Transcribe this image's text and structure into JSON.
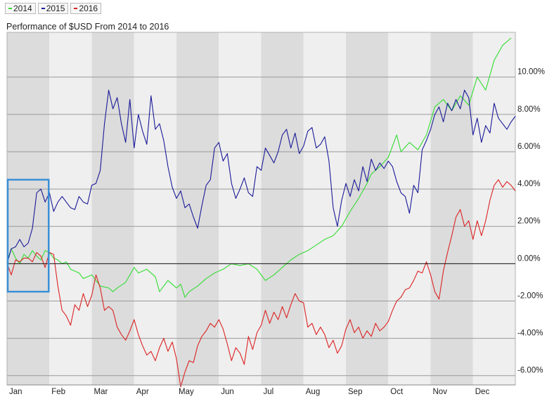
{
  "title": "Performance of $USD From 2014 to 2016",
  "colors": {
    "2014": "#33dd33",
    "2015": "#1a1a99",
    "2016": "#dd2222",
    "band_dark": "#dcdcdc",
    "band_light": "#efefef",
    "highlight": "#3a8fd6"
  },
  "chart_data": {
    "type": "line",
    "title": "Performance of $USD From 2014 to 2016",
    "xlabel": "",
    "ylabel": "",
    "x_categories": [
      "Jan",
      "Feb",
      "Mar",
      "Apr",
      "May",
      "Jun",
      "Jul",
      "Aug",
      "Sep",
      "Oct",
      "Nov",
      "Dec"
    ],
    "x_range": [
      0,
      12
    ],
    "ylim": [
      -6.5,
      12.4
    ],
    "y_ticks": [
      10,
      8,
      6,
      4,
      2,
      0,
      -2,
      -4,
      -6
    ],
    "y_tick_labels": [
      "10.00%",
      "8.00%",
      "6.00%",
      "4.00%",
      "2.00%",
      "0.00%",
      "-2.00%",
      "-4.00%",
      "-6.00%"
    ],
    "grid": true,
    "legend_position": "top-left",
    "highlight_region": {
      "x_start": 0,
      "x_end": 1,
      "y_min": -1.5,
      "y_max": 4.5
    },
    "series": [
      {
        "name": "2014",
        "points": [
          [
            0.0,
            0.1
          ],
          [
            0.1,
            0.8
          ],
          [
            0.2,
            0.3
          ],
          [
            0.3,
            0.0
          ],
          [
            0.4,
            0.5
          ],
          [
            0.5,
            0.3
          ],
          [
            0.6,
            0.7
          ],
          [
            0.7,
            0.4
          ],
          [
            0.8,
            0.2
          ],
          [
            0.9,
            0.7
          ],
          [
            1.0,
            0.6
          ],
          [
            1.1,
            0.3
          ],
          [
            1.2,
            0.2
          ],
          [
            1.3,
            0.0
          ],
          [
            1.4,
            0.1
          ],
          [
            1.5,
            -0.3
          ],
          [
            1.7,
            -0.5
          ],
          [
            1.8,
            -0.8
          ],
          [
            2.0,
            -0.6
          ],
          [
            2.2,
            -1.2
          ],
          [
            2.4,
            -1.3
          ],
          [
            2.5,
            -1.5
          ],
          [
            2.6,
            -1.3
          ],
          [
            2.8,
            -1.0
          ],
          [
            3.0,
            -0.2
          ],
          [
            3.1,
            -0.5
          ],
          [
            3.3,
            -0.3
          ],
          [
            3.5,
            -0.7
          ],
          [
            3.6,
            -1.5
          ],
          [
            3.8,
            -0.9
          ],
          [
            4.0,
            -1.3
          ],
          [
            4.1,
            -1.1
          ],
          [
            4.2,
            -1.8
          ],
          [
            4.3,
            -1.5
          ],
          [
            4.5,
            -1.2
          ],
          [
            4.7,
            -0.8
          ],
          [
            4.9,
            -0.5
          ],
          [
            5.1,
            -0.3
          ],
          [
            5.3,
            0.0
          ],
          [
            5.5,
            -0.1
          ],
          [
            5.7,
            0.0
          ],
          [
            5.9,
            -0.3
          ],
          [
            6.1,
            -0.9
          ],
          [
            6.3,
            -0.6
          ],
          [
            6.5,
            -0.2
          ],
          [
            6.7,
            0.2
          ],
          [
            6.9,
            0.5
          ],
          [
            7.1,
            0.7
          ],
          [
            7.3,
            1.0
          ],
          [
            7.5,
            1.3
          ],
          [
            7.7,
            1.5
          ],
          [
            7.9,
            2.0
          ],
          [
            8.1,
            2.8
          ],
          [
            8.3,
            3.5
          ],
          [
            8.5,
            4.3
          ],
          [
            8.6,
            4.8
          ],
          [
            8.8,
            5.2
          ],
          [
            9.0,
            5.7
          ],
          [
            9.2,
            6.9
          ],
          [
            9.3,
            6.0
          ],
          [
            9.5,
            6.5
          ],
          [
            9.7,
            6.1
          ],
          [
            9.9,
            6.9
          ],
          [
            10.1,
            8.4
          ],
          [
            10.3,
            8.8
          ],
          [
            10.5,
            8.2
          ],
          [
            10.7,
            9.0
          ],
          [
            10.9,
            8.5
          ],
          [
            11.1,
            10.0
          ],
          [
            11.3,
            9.3
          ],
          [
            11.5,
            10.9
          ],
          [
            11.7,
            11.7
          ],
          [
            11.9,
            12.1
          ]
        ]
      },
      {
        "name": "2015",
        "points": [
          [
            0.0,
            0.0
          ],
          [
            0.1,
            0.8
          ],
          [
            0.2,
            0.9
          ],
          [
            0.3,
            1.3
          ],
          [
            0.4,
            0.9
          ],
          [
            0.5,
            1.1
          ],
          [
            0.6,
            1.9
          ],
          [
            0.7,
            3.8
          ],
          [
            0.8,
            4.0
          ],
          [
            0.9,
            3.3
          ],
          [
            1.0,
            3.8
          ],
          [
            1.1,
            2.8
          ],
          [
            1.2,
            3.3
          ],
          [
            1.3,
            3.6
          ],
          [
            1.4,
            3.3
          ],
          [
            1.5,
            3.0
          ],
          [
            1.6,
            2.9
          ],
          [
            1.7,
            3.6
          ],
          [
            1.8,
            3.3
          ],
          [
            1.9,
            3.2
          ],
          [
            2.0,
            4.2
          ],
          [
            2.1,
            4.3
          ],
          [
            2.2,
            5.0
          ],
          [
            2.3,
            7.5
          ],
          [
            2.4,
            9.3
          ],
          [
            2.5,
            8.3
          ],
          [
            2.6,
            8.9
          ],
          [
            2.7,
            7.5
          ],
          [
            2.8,
            6.5
          ],
          [
            2.9,
            8.8
          ],
          [
            3.0,
            6.2
          ],
          [
            3.1,
            8.0
          ],
          [
            3.2,
            7.1
          ],
          [
            3.3,
            6.4
          ],
          [
            3.4,
            9.0
          ],
          [
            3.5,
            7.2
          ],
          [
            3.6,
            7.5
          ],
          [
            3.7,
            6.6
          ],
          [
            3.8,
            5.2
          ],
          [
            3.9,
            4.1
          ],
          [
            4.0,
            3.5
          ],
          [
            4.1,
            3.9
          ],
          [
            4.2,
            3.0
          ],
          [
            4.3,
            3.2
          ],
          [
            4.4,
            2.5
          ],
          [
            4.5,
            1.9
          ],
          [
            4.6,
            3.1
          ],
          [
            4.7,
            4.2
          ],
          [
            4.8,
            4.5
          ],
          [
            4.9,
            6.2
          ],
          [
            5.0,
            6.5
          ],
          [
            5.1,
            5.5
          ],
          [
            5.2,
            5.9
          ],
          [
            5.3,
            4.3
          ],
          [
            5.4,
            3.5
          ],
          [
            5.5,
            4.0
          ],
          [
            5.6,
            4.6
          ],
          [
            5.7,
            3.8
          ],
          [
            5.8,
            3.6
          ],
          [
            5.9,
            5.2
          ],
          [
            6.0,
            5.0
          ],
          [
            6.1,
            6.2
          ],
          [
            6.2,
            5.8
          ],
          [
            6.3,
            5.4
          ],
          [
            6.4,
            6.0
          ],
          [
            6.5,
            6.9
          ],
          [
            6.6,
            7.2
          ],
          [
            6.7,
            6.2
          ],
          [
            6.8,
            7.0
          ],
          [
            6.9,
            5.9
          ],
          [
            7.0,
            6.3
          ],
          [
            7.1,
            7.1
          ],
          [
            7.2,
            7.3
          ],
          [
            7.3,
            6.2
          ],
          [
            7.4,
            6.4
          ],
          [
            7.5,
            6.8
          ],
          [
            7.6,
            5.5
          ],
          [
            7.7,
            3.0
          ],
          [
            7.8,
            2.0
          ],
          [
            7.9,
            3.4
          ],
          [
            8.0,
            4.3
          ],
          [
            8.1,
            3.6
          ],
          [
            8.2,
            4.5
          ],
          [
            8.3,
            3.9
          ],
          [
            8.4,
            5.2
          ],
          [
            8.5,
            4.4
          ],
          [
            8.6,
            5.6
          ],
          [
            8.7,
            5.0
          ],
          [
            8.8,
            5.4
          ],
          [
            8.9,
            5.1
          ],
          [
            9.0,
            5.5
          ],
          [
            9.1,
            5.2
          ],
          [
            9.2,
            4.4
          ],
          [
            9.3,
            3.8
          ],
          [
            9.4,
            3.6
          ],
          [
            9.5,
            2.7
          ],
          [
            9.6,
            4.2
          ],
          [
            9.7,
            3.8
          ],
          [
            9.8,
            6.1
          ],
          [
            9.9,
            6.6
          ],
          [
            10.0,
            7.2
          ],
          [
            10.1,
            8.0
          ],
          [
            10.2,
            8.4
          ],
          [
            10.3,
            7.6
          ],
          [
            10.4,
            8.6
          ],
          [
            10.5,
            8.2
          ],
          [
            10.6,
            8.8
          ],
          [
            10.7,
            8.3
          ],
          [
            10.8,
            9.3
          ],
          [
            10.9,
            8.9
          ],
          [
            11.0,
            6.9
          ],
          [
            11.1,
            7.8
          ],
          [
            11.2,
            6.5
          ],
          [
            11.3,
            7.4
          ],
          [
            11.4,
            7.0
          ],
          [
            11.5,
            8.6
          ],
          [
            11.6,
            7.8
          ],
          [
            11.7,
            7.5
          ],
          [
            11.8,
            7.2
          ],
          [
            11.9,
            7.6
          ],
          [
            12.0,
            7.9
          ]
        ]
      },
      {
        "name": "2016",
        "points": [
          [
            0.0,
            0.0
          ],
          [
            0.1,
            -0.6
          ],
          [
            0.2,
            0.2
          ],
          [
            0.3,
            0.1
          ],
          [
            0.4,
            0.3
          ],
          [
            0.5,
            0.3
          ],
          [
            0.6,
            0.1
          ],
          [
            0.7,
            0.6
          ],
          [
            0.8,
            0.4
          ],
          [
            0.9,
            -0.2
          ],
          [
            1.0,
            0.6
          ],
          [
            1.1,
            0.5
          ],
          [
            1.2,
            -1.2
          ],
          [
            1.3,
            -2.5
          ],
          [
            1.4,
            -2.8
          ],
          [
            1.5,
            -3.3
          ],
          [
            1.6,
            -2.2
          ],
          [
            1.7,
            -2.5
          ],
          [
            1.8,
            -1.6
          ],
          [
            1.9,
            -2.3
          ],
          [
            2.0,
            -1.7
          ],
          [
            2.1,
            -0.6
          ],
          [
            2.2,
            -1.3
          ],
          [
            2.3,
            -2.5
          ],
          [
            2.4,
            -2.3
          ],
          [
            2.5,
            -2.5
          ],
          [
            2.6,
            -3.4
          ],
          [
            2.7,
            -3.8
          ],
          [
            2.8,
            -4.1
          ],
          [
            2.9,
            -3.6
          ],
          [
            3.0,
            -3.0
          ],
          [
            3.1,
            -3.8
          ],
          [
            3.2,
            -4.4
          ],
          [
            3.3,
            -4.9
          ],
          [
            3.4,
            -4.7
          ],
          [
            3.5,
            -5.2
          ],
          [
            3.6,
            -4.5
          ],
          [
            3.7,
            -4.0
          ],
          [
            3.8,
            -4.7
          ],
          [
            3.9,
            -4.2
          ],
          [
            4.0,
            -5.1
          ],
          [
            4.1,
            -6.6
          ],
          [
            4.2,
            -5.8
          ],
          [
            4.3,
            -5.2
          ],
          [
            4.4,
            -5.3
          ],
          [
            4.5,
            -4.4
          ],
          [
            4.6,
            -3.9
          ],
          [
            4.7,
            -3.6
          ],
          [
            4.8,
            -3.2
          ],
          [
            4.9,
            -3.4
          ],
          [
            5.0,
            -3.0
          ],
          [
            5.1,
            -3.5
          ],
          [
            5.2,
            -4.3
          ],
          [
            5.3,
            -5.2
          ],
          [
            5.4,
            -4.5
          ],
          [
            5.5,
            -4.8
          ],
          [
            5.6,
            -5.4
          ],
          [
            5.7,
            -3.9
          ],
          [
            5.8,
            -4.6
          ],
          [
            5.9,
            -3.7
          ],
          [
            6.0,
            -3.3
          ],
          [
            6.1,
            -2.5
          ],
          [
            6.2,
            -3.2
          ],
          [
            6.3,
            -2.6
          ],
          [
            6.4,
            -3.0
          ],
          [
            6.5,
            -2.3
          ],
          [
            6.6,
            -2.9
          ],
          [
            6.7,
            -2.2
          ],
          [
            6.8,
            -1.6
          ],
          [
            6.9,
            -2.0
          ],
          [
            7.0,
            -2.1
          ],
          [
            7.1,
            -3.4
          ],
          [
            7.2,
            -3.2
          ],
          [
            7.3,
            -3.8
          ],
          [
            7.4,
            -3.4
          ],
          [
            7.5,
            -3.8
          ],
          [
            7.6,
            -4.5
          ],
          [
            7.7,
            -4.1
          ],
          [
            7.8,
            -4.8
          ],
          [
            7.9,
            -4.4
          ],
          [
            8.0,
            -3.5
          ],
          [
            8.1,
            -3.0
          ],
          [
            8.2,
            -3.7
          ],
          [
            8.3,
            -3.4
          ],
          [
            8.4,
            -4.0
          ],
          [
            8.5,
            -3.6
          ],
          [
            8.6,
            -3.9
          ],
          [
            8.7,
            -3.2
          ],
          [
            8.8,
            -3.6
          ],
          [
            8.9,
            -3.4
          ],
          [
            9.0,
            -3.1
          ],
          [
            9.1,
            -2.5
          ],
          [
            9.2,
            -2.0
          ],
          [
            9.3,
            -1.8
          ],
          [
            9.4,
            -1.4
          ],
          [
            9.5,
            -1.3
          ],
          [
            9.6,
            -0.9
          ],
          [
            9.7,
            -0.4
          ],
          [
            9.8,
            -0.5
          ],
          [
            9.9,
            0.1
          ],
          [
            10.0,
            -0.6
          ],
          [
            10.1,
            -1.5
          ],
          [
            10.2,
            -1.9
          ],
          [
            10.3,
            -0.4
          ],
          [
            10.4,
            0.6
          ],
          [
            10.5,
            1.5
          ],
          [
            10.6,
            2.5
          ],
          [
            10.7,
            2.9
          ],
          [
            10.8,
            2.0
          ],
          [
            10.9,
            2.3
          ],
          [
            11.0,
            1.3
          ],
          [
            11.1,
            2.3
          ],
          [
            11.2,
            1.5
          ],
          [
            11.3,
            2.3
          ],
          [
            11.4,
            3.4
          ],
          [
            11.5,
            4.2
          ],
          [
            11.6,
            4.5
          ],
          [
            11.7,
            4.1
          ],
          [
            11.8,
            4.4
          ],
          [
            11.9,
            4.2
          ],
          [
            12.0,
            3.9
          ]
        ]
      }
    ]
  }
}
